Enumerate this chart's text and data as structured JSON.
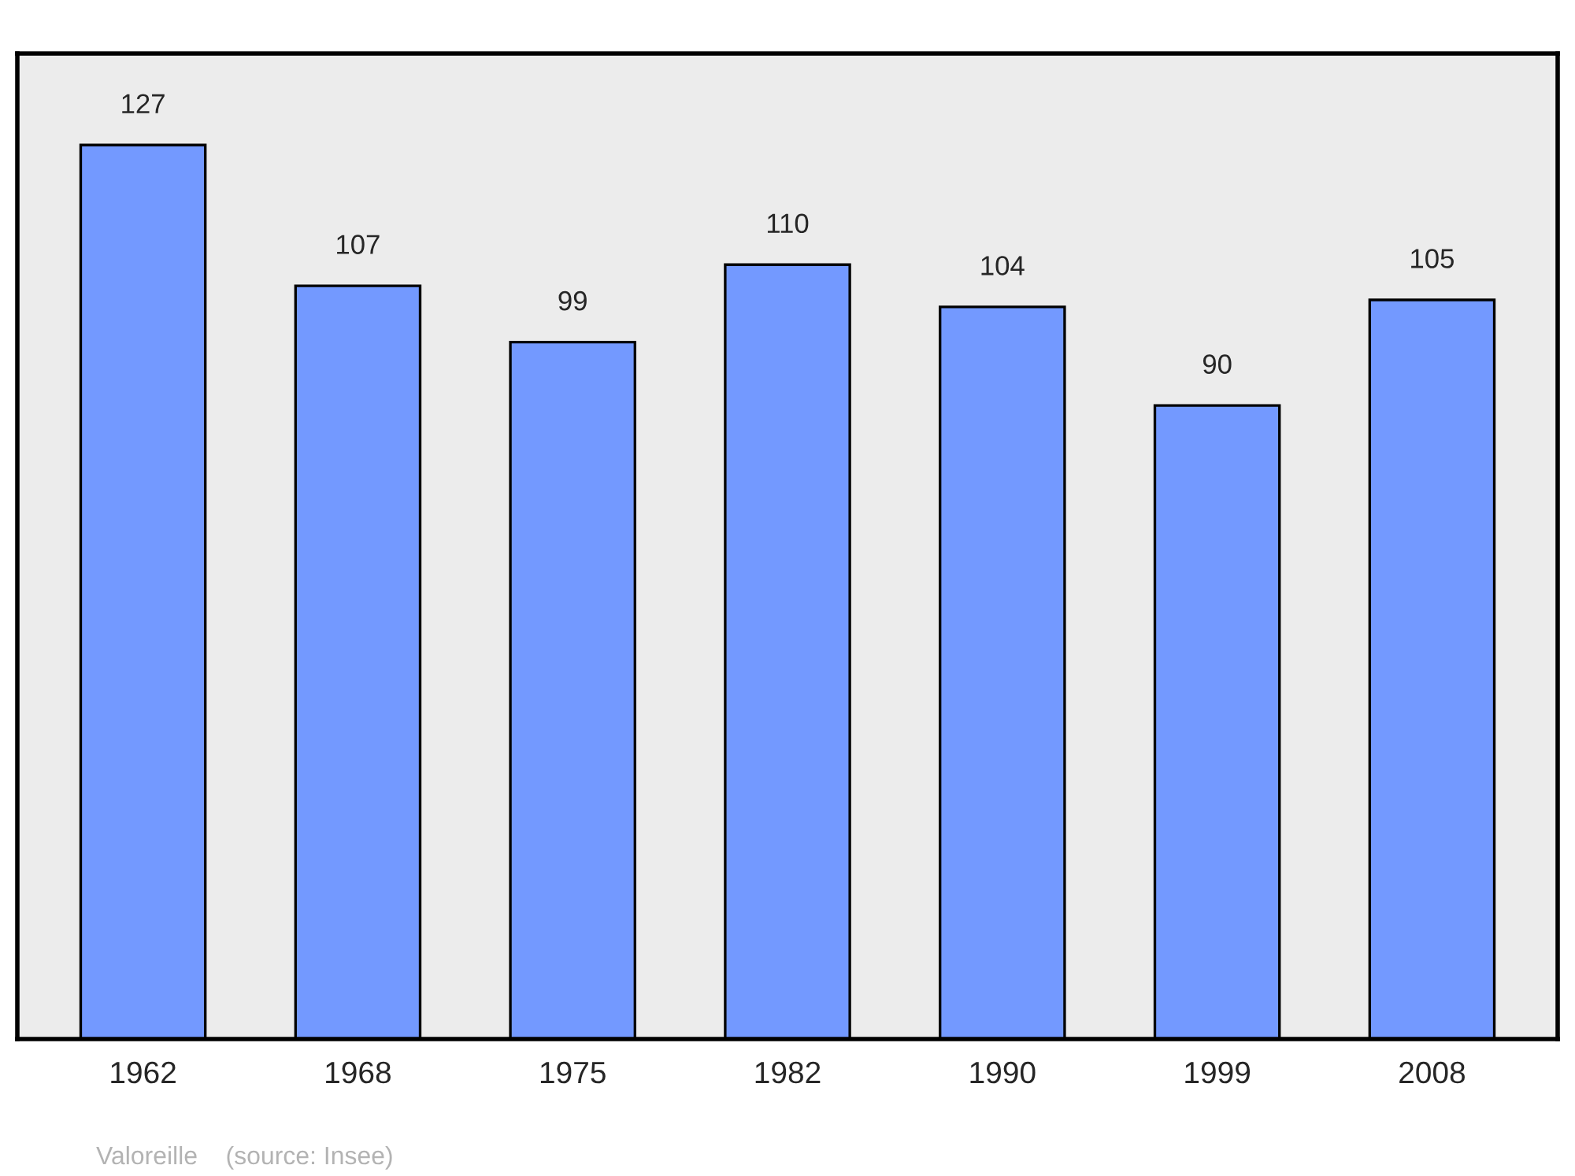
{
  "chart_data": {
    "type": "bar",
    "categories": [
      "1962",
      "1968",
      "1975",
      "1982",
      "1990",
      "1999",
      "2008"
    ],
    "values": [
      127,
      107,
      99,
      110,
      104,
      90,
      105
    ],
    "color": "#7399ff",
    "ylim": [
      0,
      140
    ],
    "data_labels": true,
    "grid": false,
    "annotations": [
      "Valoreille    (source: Insee)"
    ]
  }
}
